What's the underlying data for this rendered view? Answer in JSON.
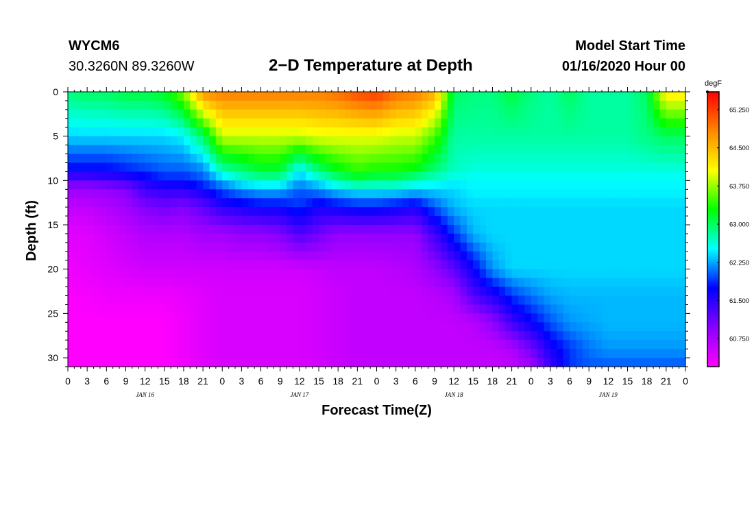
{
  "header": {
    "station": "WYCM6",
    "coords": "30.3260N 89.3260W",
    "title": "2−D Temperature at Depth",
    "model_start_label": "Model Start Time",
    "model_start_date": "01/16/2020 Hour 00"
  },
  "chart_data": {
    "type": "heatmap",
    "title": "2−D Temperature at Depth",
    "xlabel": "Forecast Time(Z)",
    "ylabel": "Depth (ft)",
    "x_tick_labels": [
      "0",
      "3",
      "6",
      "9",
      "12",
      "15",
      "18",
      "21",
      "0",
      "3",
      "6",
      "9",
      "12",
      "15",
      "18",
      "21",
      "0",
      "3",
      "6",
      "9",
      "12",
      "15",
      "18",
      "21",
      "0",
      "3",
      "6",
      "9",
      "12",
      "15",
      "18",
      "21",
      "0"
    ],
    "x_range_hours": [
      0,
      96
    ],
    "day_labels": [
      {
        "label": "JAN 16",
        "hour": 12
      },
      {
        "label": "JAN 17",
        "hour": 36
      },
      {
        "label": "JAN 18",
        "hour": 60
      },
      {
        "label": "JAN 19",
        "hour": 84
      }
    ],
    "y_ticks": [
      0,
      5,
      10,
      15,
      20,
      25,
      30
    ],
    "y_range": [
      0,
      31
    ],
    "y_inverted": true,
    "colorbar": {
      "unit": "degF",
      "tick_labels": [
        "65.250",
        "64.500",
        "63.750",
        "63.000",
        "62.250",
        "61.500",
        "60.750"
      ],
      "tick_values": [
        65.25,
        64.5,
        63.75,
        63.0,
        62.25,
        61.5,
        60.75
      ],
      "range": [
        60.2,
        65.6
      ],
      "colors": [
        "#ff00ff",
        "#8800ff",
        "#0000ff",
        "#00ffff",
        "#00ff00",
        "#ffff00",
        "#ff8800",
        "#ff0000"
      ]
    },
    "hours": [
      0,
      3,
      6,
      9,
      12,
      15,
      18,
      21,
      24,
      27,
      30,
      33,
      36,
      39,
      42,
      45,
      48,
      51,
      54,
      57,
      60,
      63,
      66,
      69,
      72,
      75,
      78,
      81,
      84,
      87,
      90,
      93,
      96
    ],
    "depths": [
      0,
      5,
      9,
      10,
      11,
      13,
      16,
      20,
      23,
      26,
      29,
      31
    ],
    "values": [
      [
        62.9,
        63.0,
        63.0,
        63.1,
        63.1,
        63.2,
        63.7,
        64.8,
        64.9,
        64.9,
        64.9,
        64.9,
        64.9,
        64.9,
        65.0,
        65.2,
        65.3,
        65.0,
        64.9,
        64.6,
        63.0,
        62.9,
        62.9,
        63.1,
        62.9,
        62.8,
        63.0,
        62.8,
        62.8,
        62.8,
        63.0,
        64.2,
        64.2
      ],
      [
        62.4,
        62.4,
        62.4,
        62.4,
        62.4,
        62.4,
        62.5,
        63.0,
        63.9,
        63.9,
        63.9,
        63.9,
        63.9,
        64.0,
        64.0,
        64.0,
        64.0,
        63.9,
        63.9,
        63.5,
        62.8,
        62.8,
        62.8,
        62.8,
        62.8,
        62.8,
        62.8,
        62.8,
        62.8,
        62.8,
        62.9,
        63.0,
        63.0
      ],
      [
        61.7,
        61.7,
        61.7,
        61.8,
        61.9,
        62.0,
        62.0,
        62.1,
        62.7,
        62.9,
        63.1,
        63.1,
        62.4,
        62.9,
        63.2,
        63.4,
        63.3,
        63.3,
        63.2,
        62.9,
        62.7,
        62.6,
        62.6,
        62.6,
        62.6,
        62.6,
        62.6,
        62.6,
        62.6,
        62.6,
        62.6,
        62.6,
        62.6
      ],
      [
        61.2,
        61.2,
        61.3,
        61.4,
        61.6,
        61.8,
        61.8,
        62.0,
        62.3,
        62.6,
        62.7,
        62.7,
        62.3,
        62.5,
        62.8,
        63.0,
        62.9,
        62.9,
        62.7,
        62.6,
        62.5,
        62.5,
        62.5,
        62.5,
        62.5,
        62.5,
        62.5,
        62.5,
        62.5,
        62.5,
        62.5,
        62.5,
        62.5
      ],
      [
        60.85,
        60.85,
        60.9,
        61.0,
        61.4,
        61.5,
        61.5,
        61.7,
        62.0,
        62.2,
        62.3,
        62.3,
        62.0,
        62.2,
        62.4,
        62.5,
        62.5,
        62.5,
        62.4,
        62.4,
        62.4,
        62.5,
        62.5,
        62.5,
        62.5,
        62.5,
        62.5,
        62.5,
        62.5,
        62.5,
        62.5,
        62.5,
        62.5
      ],
      [
        60.6,
        60.6,
        60.7,
        60.8,
        61.0,
        61.1,
        61.0,
        61.2,
        61.5,
        61.6,
        61.7,
        61.7,
        61.9,
        61.6,
        61.7,
        61.8,
        61.8,
        61.7,
        61.6,
        62.0,
        62.3,
        62.4,
        62.4,
        62.4,
        62.4,
        62.4,
        62.4,
        62.4,
        62.4,
        62.4,
        62.4,
        62.4,
        62.4
      ],
      [
        60.4,
        60.4,
        60.5,
        60.6,
        60.7,
        60.7,
        60.7,
        60.8,
        60.8,
        60.9,
        60.9,
        61.0,
        61.3,
        61.1,
        60.9,
        60.9,
        60.9,
        60.9,
        60.9,
        61.4,
        61.9,
        62.3,
        62.4,
        62.4,
        62.4,
        62.4,
        62.4,
        62.4,
        62.4,
        62.4,
        62.4,
        62.4,
        62.4
      ],
      [
        60.3,
        60.35,
        60.4,
        60.45,
        60.5,
        60.5,
        60.5,
        60.5,
        60.5,
        60.5,
        60.5,
        60.5,
        60.5,
        60.55,
        60.6,
        60.6,
        60.6,
        60.65,
        60.7,
        60.9,
        61.2,
        61.7,
        62.2,
        62.4,
        62.4,
        62.4,
        62.4,
        62.4,
        62.4,
        62.4,
        62.4,
        62.4,
        62.4
      ],
      [
        60.25,
        60.25,
        60.3,
        60.3,
        60.3,
        60.3,
        60.35,
        60.4,
        60.45,
        60.45,
        60.45,
        60.45,
        60.45,
        60.5,
        60.55,
        60.6,
        60.6,
        60.6,
        60.6,
        60.65,
        60.75,
        61.3,
        61.55,
        61.9,
        62.1,
        62.25,
        62.3,
        62.3,
        62.3,
        62.3,
        62.3,
        62.3,
        62.3
      ],
      [
        60.2,
        60.2,
        60.2,
        60.2,
        60.2,
        60.2,
        60.3,
        60.4,
        60.45,
        60.45,
        60.45,
        60.45,
        60.45,
        60.5,
        60.55,
        60.6,
        60.6,
        60.6,
        60.6,
        60.6,
        60.6,
        60.65,
        60.9,
        61.4,
        61.7,
        62.0,
        62.2,
        62.25,
        62.3,
        62.3,
        62.3,
        62.3,
        62.3
      ],
      [
        60.2,
        60.2,
        60.2,
        60.2,
        60.2,
        60.2,
        60.3,
        60.4,
        60.45,
        60.45,
        60.45,
        60.45,
        60.45,
        60.5,
        60.55,
        60.6,
        60.6,
        60.6,
        60.6,
        60.6,
        60.6,
        60.6,
        60.6,
        60.7,
        61.1,
        61.6,
        61.9,
        62.1,
        62.2,
        62.2,
        62.2,
        62.2,
        62.2
      ],
      [
        60.2,
        60.2,
        60.2,
        60.2,
        60.2,
        60.2,
        60.3,
        60.4,
        60.45,
        60.45,
        60.45,
        60.45,
        60.45,
        60.5,
        60.55,
        60.6,
        60.6,
        60.6,
        60.6,
        60.6,
        60.6,
        60.6,
        60.6,
        60.6,
        60.8,
        61.4,
        61.9,
        62.0,
        62.0,
        62.0,
        62.0,
        62.0,
        62.0
      ]
    ]
  }
}
